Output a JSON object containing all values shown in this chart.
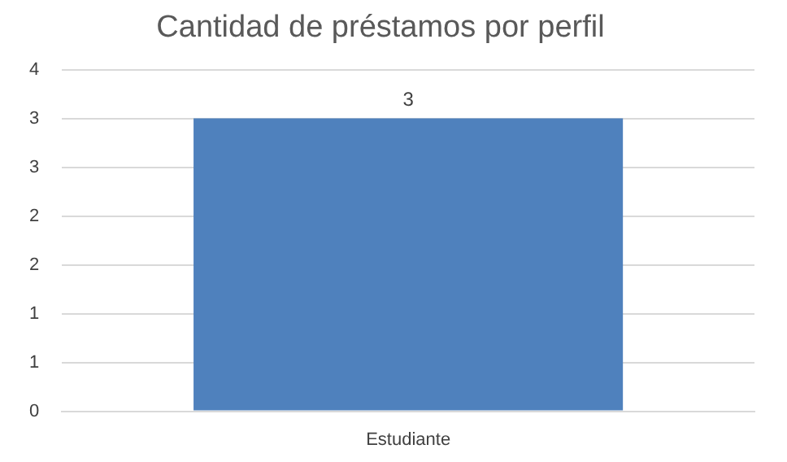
{
  "chart_data": {
    "type": "bar",
    "title": "Cantidad de préstamos por perfil",
    "categories": [
      "Estudiante"
    ],
    "values": [
      3
    ],
    "color": "#4f81bd",
    "ylim": [
      0,
      3.5
    ],
    "yticks": [
      0,
      {
        "value": 0.5,
        "label": "1"
      },
      1,
      {
        "value": 1.5,
        "label": "2"
      },
      2,
      {
        "value": 2.5,
        "label": "3"
      },
      3,
      {
        "value": 3.5,
        "label": "4"
      }
    ],
    "grid": "y",
    "data_labels": true
  }
}
